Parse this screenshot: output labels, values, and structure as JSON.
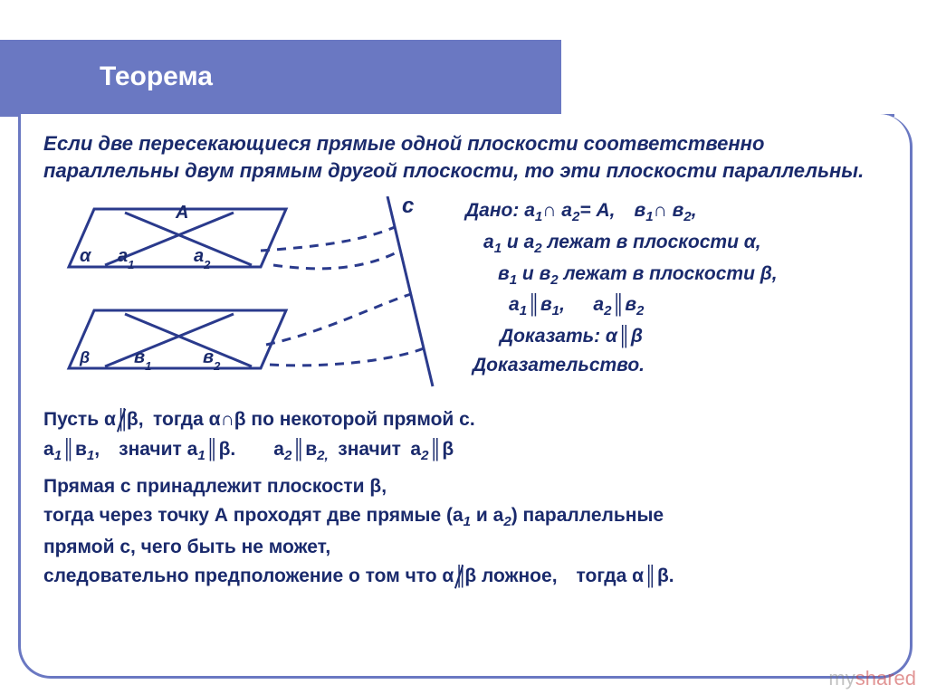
{
  "colors": {
    "accent": "#6a78c2",
    "text": "#1a2a6c",
    "frame_border": "#6a78c2",
    "background": "#ffffff",
    "diagram_stroke": "#2a3a8c",
    "dash_stroke": "#2a3a8c"
  },
  "typography": {
    "title_fontsize": 30,
    "body_fontsize": 22,
    "proof_fontsize": 21,
    "font_family": "Arial"
  },
  "header": {
    "title": "Теорема"
  },
  "theorem_statement": "Если две пересекающиеся прямые одной плоскости соответственно параллельны двум прямым другой плоскости, то эти плоскости параллельны.",
  "diagram": {
    "line_c_label": "с",
    "plane_alpha": {
      "label": "α",
      "point_A": "А",
      "line_a1": "а₁",
      "line_a2": "а₂"
    },
    "plane_beta": {
      "label": "β",
      "line_b1": "в₁",
      "line_b2": "в₂"
    }
  },
  "given": {
    "label_dano": "Дано:",
    "line1_html": "а<sub>1</sub>∩ а<sub>2</sub>= A, в<sub>1</sub>∩ в<sub>2</sub>,",
    "line2_html": "а<sub>1</sub> и а<sub>2</sub> лежат в плоскости α,",
    "line3_html": "в<sub>1</sub> и в<sub>2</sub> лежат в плоскости β,",
    "line4_html": "а<sub>1</sub>║в<sub>1</sub>,  а<sub>2</sub>║в<sub>2</sub>",
    "label_prove": "Доказать: α║β",
    "label_proof": "Доказательство."
  },
  "proof_lines": {
    "p1_a": "Пусть α",
    "p1_b": "β, тогда α∩β по некоторой прямой с.",
    "p2_html": "а<sub>1</sub>║в<sub>1</sub>, значит а<sub>1</sub>║β.  а<sub>2</sub>║в<sub>2,</sub> значит а<sub>2</sub>║β",
    "p3": "Прямая с принадлежит плоскости β,",
    "p4_html": "тогда через точку А проходят две прямые (а<sub>1</sub> и а<sub>2</sub>) параллельные",
    "p5": "прямой с, чего быть не может,",
    "p6_a": "следовательно предположение о том что α",
    "p6_b": "β ложное, тогда α║β."
  },
  "watermark": {
    "prefix": "my",
    "red": "shared"
  }
}
